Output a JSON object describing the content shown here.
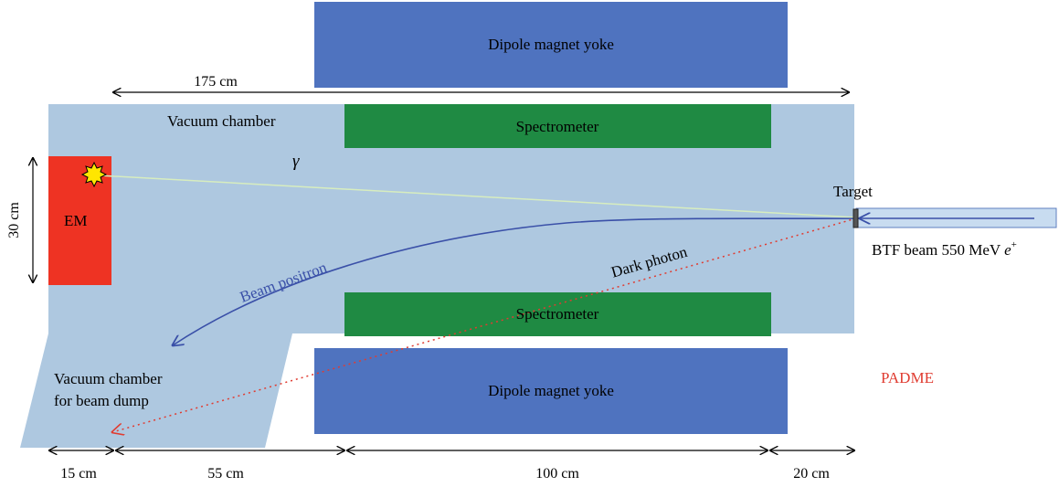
{
  "labels": {
    "yoke_top": "Dipole magnet yoke",
    "yoke_bottom": "Dipole magnet yoke",
    "spectrometer_top": "Spectrometer",
    "spectrometer_bottom": "Spectrometer",
    "vacuum_chamber": "Vacuum chamber",
    "dump_line1": "Vacuum chamber",
    "dump_line2": "for beam dump",
    "em": "EM",
    "target": "Target",
    "beam_prefix": "BTF beam 550 MeV ",
    "beam_particle": "e",
    "beam_charge": "+",
    "dark_photon": "Dark photon",
    "beam_positron": "Beam positron",
    "gamma": "γ",
    "padme": "PADME"
  },
  "dimensions": {
    "overall": "175 cm",
    "height": "30 cm",
    "d1": "15 cm",
    "d2": "55 cm",
    "d3": "100 cm",
    "d4": "20 cm"
  },
  "colors": {
    "chamber": "#aec8e0",
    "yoke": "#4f73bf",
    "spectrometer": "#1f8a43",
    "em": "#ee3323",
    "padme": "#e03c31",
    "beam_line": "#3a50a8",
    "dark_photon": "#e03c31",
    "gamma_line": "#d7edbf"
  }
}
